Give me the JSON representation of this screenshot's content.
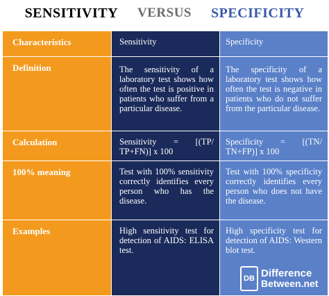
{
  "title": {
    "left": "SENSITIVITY",
    "middle": "VERSUS",
    "right": "SPECIFICITY"
  },
  "colors": {
    "orange": "#f39a1e",
    "navy": "#1a2a5a",
    "blue": "#5a80c8",
    "title_blue": "#3a5aa8"
  },
  "table": {
    "header": {
      "c1": "Characteristics",
      "c2": "Sensitivity",
      "c3": "Specificity"
    },
    "rows": [
      {
        "c1": "Definition",
        "c2": "The sensitivity of a laboratory test shows how often the test is positive in patients who suffer from a particular disease.",
        "c3": "The specificity of a laboratory test shows how often the test is negative in patients who do not suffer from the particular disease."
      },
      {
        "c1": "Calculation",
        "c2": "Sensitivity = [(TP/ TP+FN)] x 100",
        "c3": "Specificity = [(TN/ TN+FP)] x 100"
      },
      {
        "c1": "100% meaning",
        "c2": "Test with 100% sensitivity correctly identifies every person who has the disease.",
        "c3": "Test with 100% specificity correctly identifies every person who does not have the disease."
      },
      {
        "c1": "Examples",
        "c2": "High sensitivity test for detection of AIDS: ELISA test.",
        "c3": "High specificity test for detection of AIDS: Western blot test."
      }
    ]
  },
  "logo": {
    "mark": "DB",
    "line1": "Difference",
    "line2": "Between.net"
  }
}
